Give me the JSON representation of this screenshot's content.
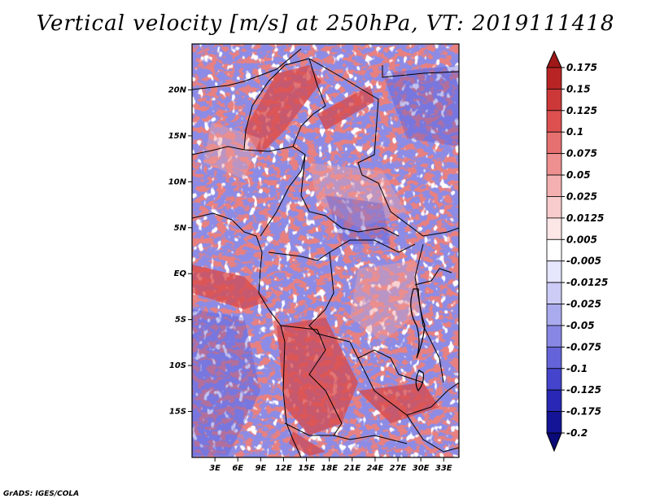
{
  "title": "Vertical velocity [m/s] at 250hPa, VT: 2019111418",
  "footer": "GrADS: IGES/COLA",
  "map": {
    "lat_labels": [
      "20N",
      "15N",
      "10N",
      "5N",
      "EQ",
      "5S",
      "10S",
      "15S"
    ],
    "lat_values": [
      20,
      15,
      10,
      5,
      0,
      -5,
      -10,
      -15
    ],
    "lon_labels": [
      "3E",
      "6E",
      "9E",
      "12E",
      "15E",
      "18E",
      "21E",
      "24E",
      "27E",
      "30E",
      "33E"
    ],
    "lon_values": [
      3,
      6,
      9,
      12,
      15,
      18,
      21,
      24,
      27,
      30,
      33
    ],
    "lon_range": [
      0,
      35
    ],
    "lat_range": [
      -20,
      25
    ]
  },
  "colorbar": {
    "labels": [
      "0.175",
      "0.15",
      "0.125",
      "0.1",
      "0.075",
      "0.05",
      "0.025",
      "0.0125",
      "0.005",
      "-0.005",
      "-0.0125",
      "-0.025",
      "-0.05",
      "-0.075",
      "-0.1",
      "-0.125",
      "-0.175",
      "-0.2"
    ],
    "colors": [
      "#a01818",
      "#b82424",
      "#cc3838",
      "#dc5050",
      "#e67070",
      "#ee9090",
      "#f4b0b0",
      "#f8cccc",
      "#fce6e6",
      "#ffffff",
      "#e6e6fc",
      "#ccccf6",
      "#aaaaee",
      "#8888e4",
      "#6464d8",
      "#4444cc",
      "#2828b4",
      "#141496",
      "#0a0a78"
    ]
  }
}
